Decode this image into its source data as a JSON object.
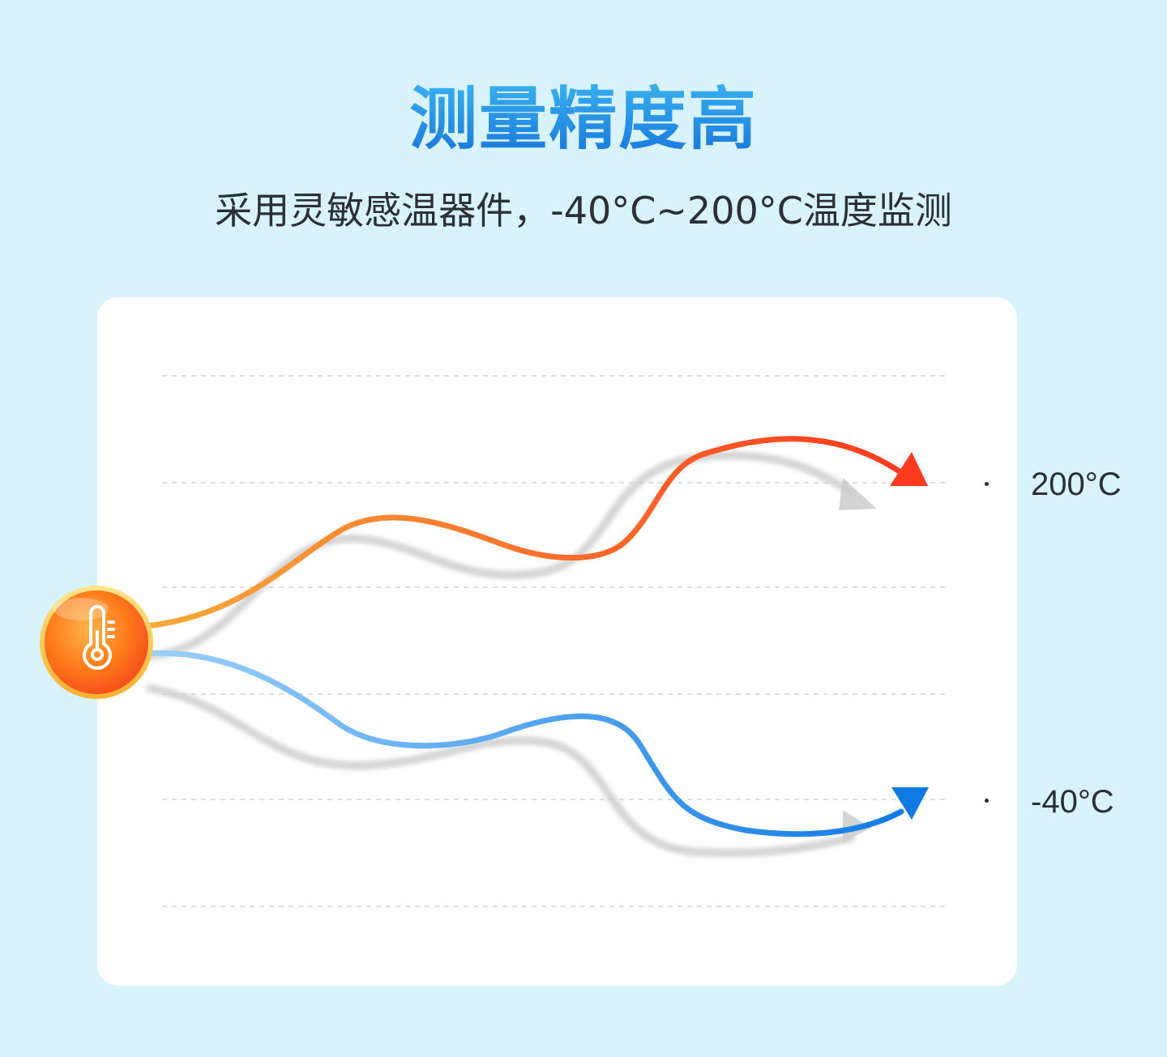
{
  "header": {
    "title": "测量精度高",
    "subtitle": "采用灵敏感温器件，-40°C~200°C温度监测"
  },
  "graphic": {
    "labels": {
      "high": "200°C",
      "low": "-40°C"
    },
    "icon": "thermometer-icon",
    "colors": {
      "background": "#d9f3fd",
      "high_start": "#f7a93a",
      "high_end": "#ff3b1f",
      "low_start": "#9cd1fb",
      "low_end": "#0f7ae3"
    }
  }
}
